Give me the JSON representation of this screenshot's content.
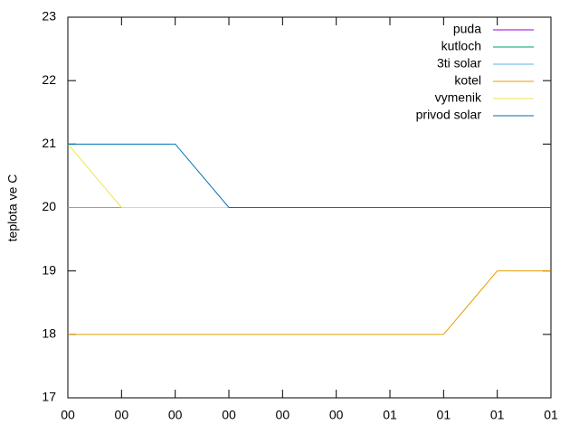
{
  "chart_data": {
    "type": "line",
    "y_label": "teplota ve C",
    "x": [
      0,
      1,
      2,
      3,
      4,
      5,
      6,
      7,
      8,
      9
    ],
    "xlim": [
      0,
      9
    ],
    "xticks": [
      {
        "value": 0,
        "label": "00"
      },
      {
        "value": 1,
        "label": "00"
      },
      {
        "value": 2,
        "label": "00"
      },
      {
        "value": 3,
        "label": "00"
      },
      {
        "value": 4,
        "label": "00"
      },
      {
        "value": 5,
        "label": "00"
      },
      {
        "value": 6,
        "label": "01"
      },
      {
        "value": 7,
        "label": "01"
      },
      {
        "value": 8,
        "label": "01"
      },
      {
        "value": 9,
        "label": "01"
      }
    ],
    "ylim": [
      17,
      23
    ],
    "yticks": [
      17,
      18,
      19,
      20,
      21,
      22,
      23
    ],
    "legend": "top-right",
    "series": [
      {
        "name": "puda",
        "color": "#9400d3",
        "values": [
          20,
          20,
          20,
          20,
          20,
          20,
          20,
          20,
          20,
          20
        ]
      },
      {
        "name": "kutloch",
        "color": "#009e73",
        "values": [
          20,
          20,
          20,
          20,
          20,
          20,
          20,
          20,
          20,
          20
        ]
      },
      {
        "name": "3ti solar",
        "color": "#56b4e9",
        "values": [
          20,
          20,
          20,
          20,
          20,
          20,
          20,
          20,
          20,
          20
        ]
      },
      {
        "name": "kotel",
        "color": "#e69f00",
        "values": [
          18,
          18,
          18,
          18,
          18,
          18,
          18,
          18,
          19,
          19
        ]
      },
      {
        "name": "vymenik",
        "color": "#f0e442",
        "values": [
          21,
          20,
          20,
          20,
          20,
          20,
          20,
          20,
          20,
          20
        ]
      },
      {
        "name": "privod solar",
        "color": "#0072b2",
        "values": [
          21,
          21,
          21,
          20,
          20,
          20,
          20,
          20,
          20,
          20
        ]
      }
    ]
  }
}
